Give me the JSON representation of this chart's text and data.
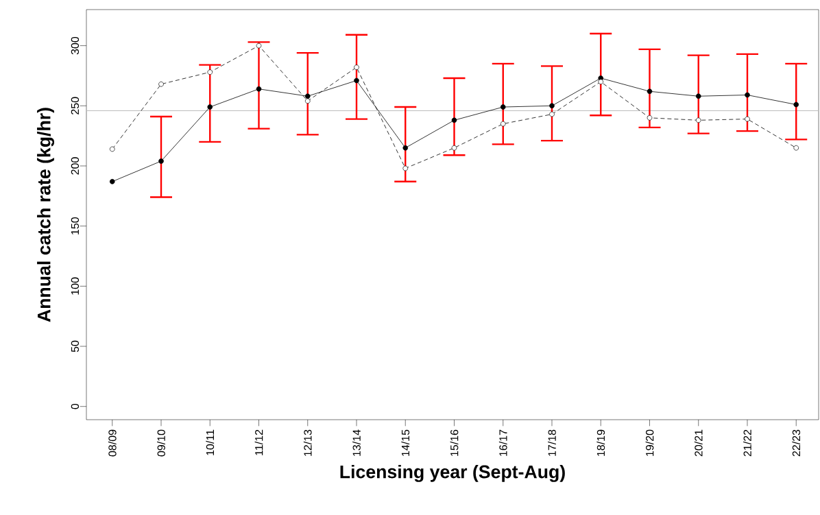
{
  "chart_data": {
    "type": "line",
    "xlabel": "Licensing year (Sept-Aug)",
    "ylabel": "Annual catch rate (kg/hr)",
    "categories": [
      "08/09",
      "09/10",
      "10/11",
      "11/12",
      "12/13",
      "13/14",
      "14/15",
      "15/16",
      "16/17",
      "17/18",
      "18/19",
      "19/20",
      "20/21",
      "21/22",
      "22/23"
    ],
    "ylim": [
      -11,
      330
    ],
    "yticks": [
      0,
      50,
      100,
      150,
      200,
      250,
      300
    ],
    "grid": false,
    "series": [
      {
        "color": "#000000",
        "marker": "circle",
        "line_style": "solid",
        "values": [
          187,
          204,
          249,
          264,
          258,
          271,
          215,
          238,
          249,
          250,
          273,
          262,
          258,
          259,
          251
        ],
        "errors": [
          null,
          [
            174,
            241
          ],
          [
            220,
            284
          ],
          [
            231,
            303
          ],
          [
            226,
            294
          ],
          [
            239,
            309
          ],
          [
            187,
            249
          ],
          [
            209,
            273
          ],
          [
            218,
            285
          ],
          [
            221,
            283
          ],
          [
            242,
            310
          ],
          [
            232,
            297
          ],
          [
            227,
            292
          ],
          [
            229,
            293
          ],
          [
            222,
            285
          ]
        ]
      },
      {
        "color": "#000000",
        "marker": "circle",
        "line_style": "dashed",
        "values": [
          214,
          268,
          278,
          300,
          254,
          282,
          198,
          215,
          235,
          243,
          270,
          240,
          238,
          239,
          215
        ]
      }
    ],
    "ref_lines": [
      {
        "axis": "y",
        "value": 246,
        "color": "#c0c0c0"
      }
    ]
  }
}
